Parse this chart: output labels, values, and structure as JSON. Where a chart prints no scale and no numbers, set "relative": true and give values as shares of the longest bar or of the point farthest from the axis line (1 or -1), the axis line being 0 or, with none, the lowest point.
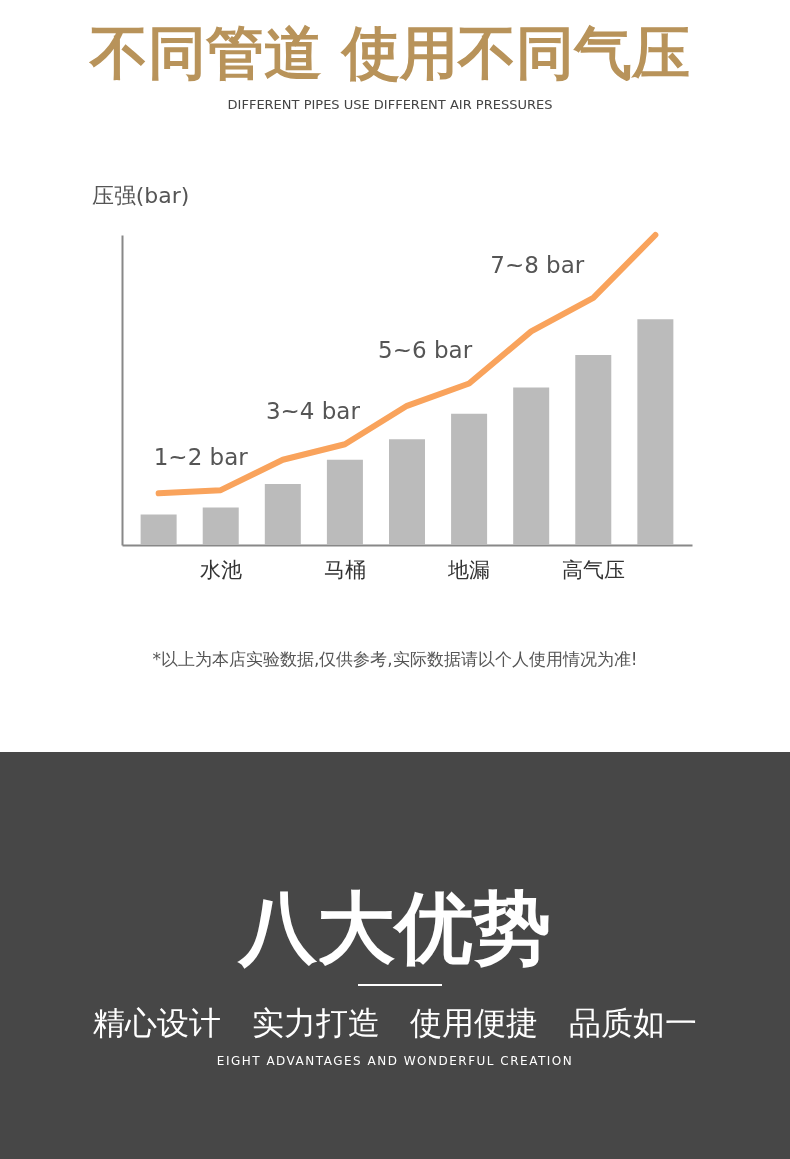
{
  "chart_data": {
    "type": "bar",
    "title": "不同管道 使用不同气压",
    "subtitle": "DIFFERENT PIPES USE DIFFERENT AIR PRESSURES",
    "ylabel": "压强(bar)",
    "relative": true,
    "grid": false,
    "marker": "none",
    "line_style": "solid",
    "categories": [
      null,
      "水池",
      null,
      "马桶",
      null,
      "地漏",
      null,
      "高气压",
      null
    ],
    "series": [
      {
        "color": "#bbbbbb",
        "values": [
          0.098,
          0.121,
          0.197,
          0.275,
          0.341,
          0.423,
          0.508,
          0.613,
          0.728
        ]
      },
      {
        "type": "line",
        "color": "#f9a35c",
        "values": [
          0.167,
          0.177,
          0.275,
          0.325,
          0.449,
          0.521,
          0.689,
          0.797,
          1
        ]
      }
    ],
    "annotations": [
      "1~2 bar",
      "3~4 bar",
      "5~6 bar",
      "7~8 bar",
      "*以上为本店实验数据,仅供参考,实际数据请以个人使用情况为准!",
      "八大优势",
      "精心设计   实力打造   使用便捷   品质如一",
      "EIGHT ADVANTAGES AND WONDERFUL CREATION"
    ]
  }
}
